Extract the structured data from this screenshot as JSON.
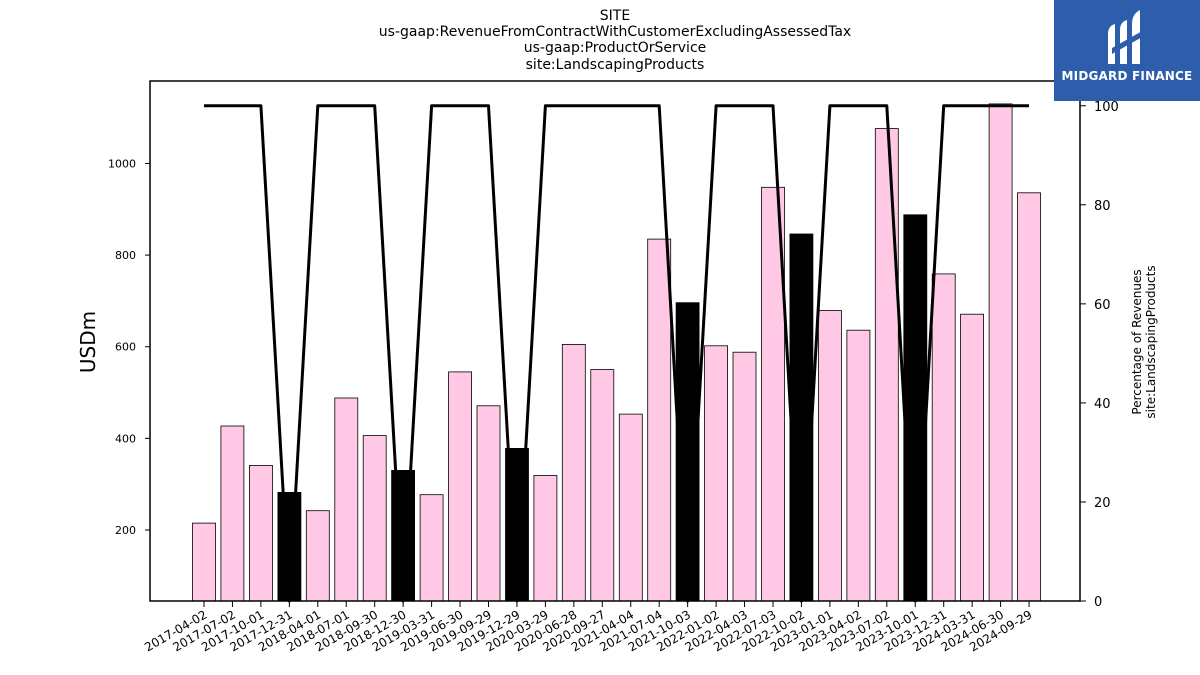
{
  "chart_data": {
    "type": "bar",
    "title_lines": [
      "SITE",
      "us-gaap:RevenueFromContractWithCustomerExcludingAssessedTax",
      "us-gaap:ProductOrService",
      "site:LandscapingProducts"
    ],
    "ylabel": "USDm",
    "ylabel_right": [
      "Percentage of Revenues",
      "site:LandscapingProducts"
    ],
    "ylim": [
      45,
      1180
    ],
    "ylim_right": [
      0,
      105
    ],
    "yticks": [
      200,
      400,
      600,
      800,
      1000
    ],
    "yticks_right": [
      0,
      20,
      40,
      60,
      80,
      100
    ],
    "grid": false,
    "categories": [
      "2017-04-02",
      "2017-07-02",
      "2017-10-01",
      "2017-12-31",
      "2018-04-01",
      "2018-07-01",
      "2018-09-30",
      "2018-12-30",
      "2019-03-31",
      "2019-06-30",
      "2019-09-29",
      "2019-12-29",
      "2020-03-29",
      "2020-06-28",
      "2020-09-27",
      "2021-04-04",
      "2021-07-04",
      "2021-10-03",
      "2022-01-02",
      "2022-04-03",
      "2022-07-03",
      "2022-10-02",
      "2023-01-01",
      "2023-04-02",
      "2023-07-02",
      "2023-10-01",
      "2023-12-31",
      "2024-03-31",
      "2024-06-30",
      "2024-09-29"
    ],
    "series": [
      {
        "type": "bar",
        "values": [
          215,
          427,
          341,
          282,
          242,
          488,
          406,
          330,
          277,
          545,
          471,
          378,
          319,
          605,
          550,
          453,
          835,
          696,
          602,
          588,
          948,
          846,
          679,
          636,
          1076,
          888,
          759,
          671,
          1130,
          936
        ],
        "colors": [
          "#ffc8e4",
          "#ffc8e4",
          "#ffc8e4",
          "#000000",
          "#ffc8e4",
          "#ffc8e4",
          "#ffc8e4",
          "#000000",
          "#ffc8e4",
          "#ffc8e4",
          "#ffc8e4",
          "#000000",
          "#ffc8e4",
          "#ffc8e4",
          "#ffc8e4",
          "#ffc8e4",
          "#ffc8e4",
          "#000000",
          "#ffc8e4",
          "#ffc8e4",
          "#ffc8e4",
          "#000000",
          "#ffc8e4",
          "#ffc8e4",
          "#ffc8e4",
          "#000000",
          "#ffc8e4",
          "#ffc8e4",
          "#ffc8e4",
          "#ffc8e4"
        ]
      },
      {
        "type": "line",
        "axis": "right",
        "color": "#000000",
        "values": [
          100,
          100,
          100,
          null,
          100,
          100,
          100,
          null,
          100,
          100,
          100,
          null,
          100,
          100,
          100,
          100,
          100,
          null,
          100,
          100,
          100,
          null,
          100,
          100,
          100,
          null,
          100,
          100,
          100,
          100
        ]
      }
    ]
  },
  "logo": {
    "text": "MIDGARD FINANCE",
    "background": "#2e5eab"
  }
}
